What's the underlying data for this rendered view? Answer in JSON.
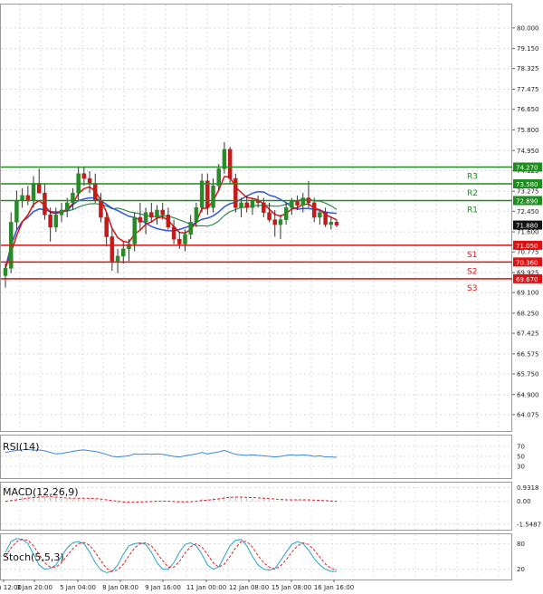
{
  "chart_data": {
    "type": "candlestick",
    "main": {
      "ylim": [
        63.4,
        81.0
      ],
      "y_ticks": [
        "80.000",
        "79.150",
        "78.325",
        "77.475",
        "76.650",
        "75.800",
        "74.950",
        "74.125",
        "73.275",
        "72.450",
        "71.600",
        "70.775",
        "69.925",
        "69.100",
        "68.250",
        "67.425",
        "66.575",
        "65.750",
        "64.900",
        "64.075"
      ],
      "levels": [
        {
          "label": "R3",
          "value": 74.27,
          "value_label": "74.270",
          "color": "#1e8c1e"
        },
        {
          "label": "R2",
          "value": 73.58,
          "value_label": "73.580",
          "color": "#1e8c1e"
        },
        {
          "label": "R1",
          "value": 72.89,
          "value_label": "72.890",
          "color": "#1e8c1e"
        },
        {
          "label": "S1",
          "value": 71.05,
          "value_label": "71.050",
          "color": "#dd1111"
        },
        {
          "label": "S2",
          "value": 70.36,
          "value_label": "70.360",
          "color": "#dd1111"
        },
        {
          "label": "S3",
          "value": 69.67,
          "value_label": "69.670",
          "color": "#dd1111"
        }
      ],
      "last_price": {
        "value": 71.88,
        "label": "71.880"
      },
      "ohlc": [
        [
          69.8,
          70.3,
          69.3,
          70.1
        ],
        [
          70.1,
          72.4,
          69.9,
          72.0
        ],
        [
          72.0,
          73.3,
          71.7,
          72.9
        ],
        [
          72.9,
          73.4,
          72.6,
          73.1
        ],
        [
          73.1,
          73.5,
          72.7,
          72.9
        ],
        [
          72.9,
          73.9,
          72.6,
          73.6
        ],
        [
          73.6,
          74.2,
          73.3,
          73.2
        ],
        [
          73.2,
          73.6,
          72.1,
          72.3
        ],
        [
          72.3,
          72.6,
          71.2,
          71.8
        ],
        [
          71.8,
          72.6,
          71.6,
          72.3
        ],
        [
          72.3,
          72.8,
          72.0,
          72.5
        ],
        [
          72.5,
          73.0,
          72.2,
          72.8
        ],
        [
          72.8,
          73.4,
          72.5,
          73.2
        ],
        [
          73.2,
          74.3,
          72.9,
          74.0
        ],
        [
          74.0,
          74.3,
          73.5,
          73.8
        ],
        [
          73.8,
          74.1,
          73.2,
          73.6
        ],
        [
          73.6,
          74.0,
          72.8,
          72.9
        ],
        [
          72.9,
          73.2,
          72.0,
          72.2
        ],
        [
          72.2,
          72.4,
          71.0,
          71.4
        ],
        [
          71.4,
          71.7,
          70.0,
          70.4
        ],
        [
          70.4,
          70.9,
          69.9,
          70.6
        ],
        [
          70.6,
          71.2,
          70.3,
          70.9
        ],
        [
          70.9,
          71.3,
          70.4,
          71.1
        ],
        [
          71.1,
          72.4,
          70.8,
          72.2
        ],
        [
          72.2,
          72.8,
          71.7,
          72.0
        ],
        [
          72.0,
          72.6,
          71.5,
          72.4
        ],
        [
          72.4,
          72.8,
          72.0,
          72.2
        ],
        [
          72.2,
          72.7,
          71.9,
          72.5
        ],
        [
          72.5,
          72.8,
          72.1,
          72.3
        ],
        [
          72.3,
          72.6,
          71.7,
          71.8
        ],
        [
          71.8,
          72.1,
          71.1,
          71.3
        ],
        [
          71.3,
          71.6,
          70.9,
          71.1
        ],
        [
          71.1,
          71.7,
          70.8,
          71.5
        ],
        [
          71.5,
          72.3,
          71.3,
          72.0
        ],
        [
          72.0,
          72.8,
          71.8,
          72.6
        ],
        [
          72.6,
          74.0,
          72.4,
          73.7
        ],
        [
          73.7,
          74.0,
          72.3,
          72.6
        ],
        [
          72.6,
          73.8,
          72.4,
          73.5
        ],
        [
          73.5,
          74.4,
          73.3,
          74.2
        ],
        [
          74.2,
          75.3,
          74.0,
          75.0
        ],
        [
          75.0,
          75.1,
          73.6,
          73.8
        ],
        [
          73.8,
          74.0,
          72.4,
          72.6
        ],
        [
          72.6,
          73.0,
          72.2,
          72.8
        ],
        [
          72.8,
          73.1,
          72.4,
          72.6
        ],
        [
          72.6,
          73.0,
          72.3,
          72.9
        ],
        [
          72.9,
          73.1,
          72.6,
          72.8
        ],
        [
          72.8,
          73.0,
          72.2,
          72.4
        ],
        [
          72.4,
          72.8,
          72.0,
          72.1
        ],
        [
          72.1,
          72.5,
          71.4,
          71.9
        ],
        [
          71.9,
          72.3,
          71.3,
          72.1
        ],
        [
          72.1,
          72.8,
          71.9,
          72.6
        ],
        [
          72.6,
          73.0,
          72.3,
          72.9
        ],
        [
          72.9,
          73.1,
          72.5,
          72.7
        ],
        [
          72.7,
          73.2,
          72.4,
          73.0
        ],
        [
          73.0,
          73.7,
          72.6,
          72.8
        ],
        [
          72.8,
          73.0,
          72.0,
          72.2
        ],
        [
          72.2,
          72.5,
          71.9,
          72.4
        ],
        [
          72.4,
          72.6,
          71.8,
          71.9
        ],
        [
          71.9,
          72.2,
          71.7,
          72.0
        ],
        [
          72.0,
          72.1,
          71.8,
          71.88
        ]
      ],
      "ma_red_note": "fast moving average",
      "ma_blue_note": "slow moving average"
    },
    "x_labels": [
      "2 Jan 12:00",
      "3 Jan 20:00",
      "5 Jan 04:00",
      "8 Jan 08:00",
      "9 Jan 16:00",
      "11 Jan 00:00",
      "12 Jan 08:00",
      "15 Jan 08:00",
      "16 Jan 16:00"
    ],
    "rsi": {
      "label": "RSI(14)",
      "ticks": [
        "70",
        "50",
        "30"
      ],
      "ylim": [
        10,
        90
      ],
      "values": [
        58,
        60,
        62,
        63,
        64,
        62,
        63,
        61,
        58,
        55,
        56,
        58,
        60,
        62,
        63,
        61,
        60,
        57,
        54,
        50,
        49,
        50,
        51,
        55,
        54,
        55,
        54,
        55,
        54,
        52,
        50,
        49,
        51,
        53,
        55,
        58,
        55,
        57,
        59,
        62,
        58,
        54,
        53,
        52,
        53,
        52,
        51,
        50,
        49,
        50,
        52,
        53,
        52,
        53,
        52,
        50,
        51,
        49,
        49,
        48
      ]
    },
    "macd": {
      "label": "MACD(12,26,9)",
      "ticks": [
        "0.9318",
        "0.00",
        "-1.5487"
      ],
      "ylim": [
        -1.8,
        1.2
      ],
      "hist": [
        -0.1,
        0.05,
        0.2,
        0.3,
        0.35,
        0.4,
        0.4,
        0.35,
        0.3,
        0.25,
        0.2,
        0.15,
        0.15,
        0.2,
        0.2,
        0.2,
        0.15,
        0.1,
        0.0,
        -0.1,
        -0.15,
        -0.15,
        -0.1,
        -0.05,
        0.0,
        0.0,
        0.0,
        0.05,
        0.05,
        0.0,
        -0.05,
        -0.1,
        -0.05,
        0.0,
        0.05,
        0.15,
        0.15,
        0.2,
        0.25,
        0.35,
        0.35,
        0.3,
        0.25,
        0.2,
        0.2,
        0.15,
        0.15,
        0.1,
        0.05,
        0.05,
        0.05,
        0.1,
        0.1,
        0.1,
        0.1,
        0.05,
        0.05,
        0.0,
        -0.05,
        -0.05
      ],
      "signal": [
        0.0,
        0.05,
        0.1,
        0.15,
        0.2,
        0.25,
        0.28,
        0.3,
        0.3,
        0.28,
        0.25,
        0.22,
        0.2,
        0.2,
        0.2,
        0.2,
        0.18,
        0.15,
        0.1,
        0.05,
        0.0,
        -0.05,
        -0.07,
        -0.07,
        -0.05,
        -0.03,
        -0.02,
        0.0,
        0.01,
        0.0,
        -0.02,
        -0.04,
        -0.04,
        -0.03,
        0.0,
        0.05,
        0.08,
        0.12,
        0.16,
        0.22,
        0.26,
        0.28,
        0.28,
        0.26,
        0.25,
        0.23,
        0.21,
        0.18,
        0.15,
        0.12,
        0.1,
        0.1,
        0.1,
        0.1,
        0.1,
        0.08,
        0.06,
        0.04,
        0.02,
        0.0
      ]
    },
    "stoch": {
      "label": "Stoch(5,5,3)",
      "ticks": [
        "80",
        "20"
      ],
      "ylim": [
        0,
        100
      ],
      "k": [
        60,
        85,
        92,
        90,
        80,
        55,
        30,
        20,
        22,
        30,
        50,
        70,
        82,
        85,
        80,
        60,
        35,
        18,
        12,
        15,
        30,
        55,
        75,
        80,
        82,
        78,
        60,
        35,
        20,
        20,
        35,
        60,
        78,
        82,
        75,
        55,
        30,
        20,
        25,
        50,
        75,
        88,
        90,
        75,
        50,
        30,
        20,
        18,
        22,
        40,
        60,
        78,
        85,
        80,
        65,
        45,
        30,
        20,
        15,
        15
      ],
      "d": [
        50,
        70,
        85,
        90,
        88,
        75,
        55,
        35,
        25,
        25,
        35,
        52,
        68,
        80,
        83,
        76,
        60,
        40,
        22,
        15,
        18,
        32,
        52,
        70,
        80,
        82,
        75,
        58,
        40,
        25,
        25,
        38,
        58,
        73,
        80,
        72,
        55,
        35,
        25,
        32,
        50,
        70,
        85,
        85,
        72,
        52,
        35,
        25,
        20,
        28,
        42,
        60,
        75,
        82,
        78,
        65,
        48,
        32,
        22,
        18
      ]
    }
  }
}
